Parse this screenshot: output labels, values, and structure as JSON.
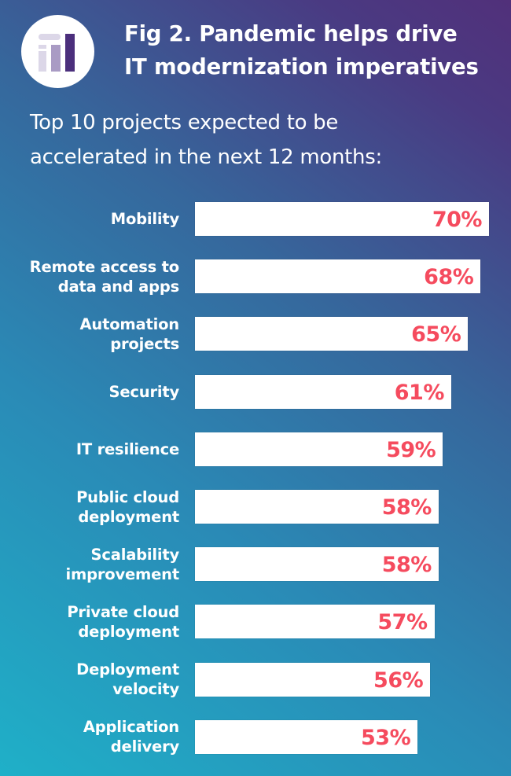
{
  "header": {
    "icon": "bar-chart-icon",
    "title_lines": [
      "Fig 2. Pandemic helps drive",
      "IT modernization imperatives"
    ],
    "subtitle_lines": [
      "Top 10 projects expected to be",
      "accelerated in the next 12 months:"
    ]
  },
  "colors": {
    "background_start": "#1fb0c8",
    "background_end": "#51307a",
    "bar": "#ffffff",
    "value_text": "#f54b5e",
    "icon_light": "#dcd7e8",
    "icon_mid": "#a99bc4",
    "icon_dark": "#4b2f7c"
  },
  "chart_data": {
    "type": "bar",
    "orientation": "horizontal",
    "title": "Fig 2. Pandemic helps drive IT modernization imperatives",
    "subtitle": "Top 10 projects expected to be accelerated in the next 12 months:",
    "xlabel": "",
    "ylabel": "",
    "unit": "%",
    "grid": false,
    "categories": [
      [
        "Mobility"
      ],
      [
        "Remote access to",
        "data and apps"
      ],
      [
        "Automation",
        "projects"
      ],
      [
        "Security"
      ],
      [
        "IT resilience"
      ],
      [
        "Public cloud",
        "deployment"
      ],
      [
        "Scalability",
        "improvement"
      ],
      [
        "Private cloud",
        "deployment"
      ],
      [
        "Deployment",
        "velocity"
      ],
      [
        "Application",
        "delivery"
      ]
    ],
    "values": [
      70,
      68,
      65,
      61,
      59,
      58,
      58,
      57,
      56,
      53
    ],
    "value_labels": [
      "70%",
      "68%",
      "65%",
      "61%",
      "59%",
      "58%",
      "58%",
      "57%",
      "56%",
      "53%"
    ],
    "xlim": [
      0,
      70
    ]
  }
}
